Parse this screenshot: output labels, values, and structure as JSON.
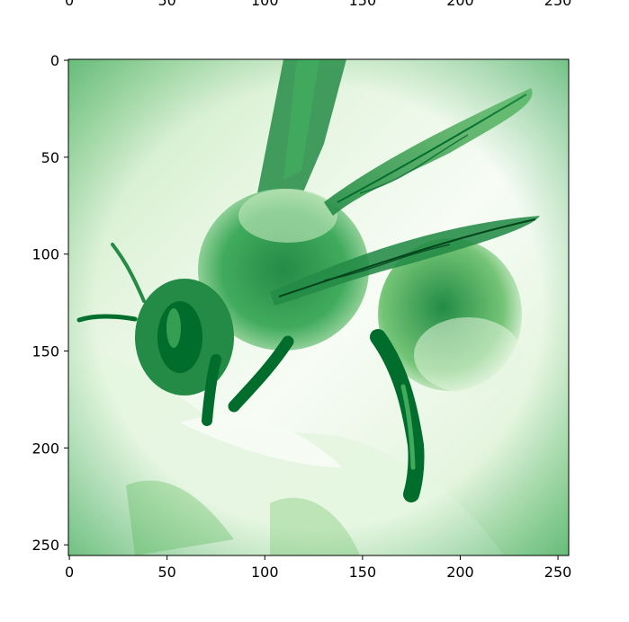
{
  "chart_data": [
    {
      "type": "image",
      "x_ticks": [
        0,
        50,
        100,
        150,
        200,
        250
      ],
      "x_tick_labels": [
        "0",
        "50",
        "100",
        "150",
        "200",
        "250"
      ],
      "clipped_top_panel": true
    },
    {
      "type": "image",
      "image_subject": "bee",
      "colormap": "Greens",
      "extent": {
        "x": [
          -0.5,
          255.5
        ],
        "y": [
          255.5,
          -0.5
        ]
      },
      "x_ticks": [
        0,
        50,
        100,
        150,
        200,
        250
      ],
      "x_tick_labels": [
        "0",
        "50",
        "100",
        "150",
        "200",
        "250"
      ],
      "y_ticks": [
        0,
        50,
        100,
        150,
        200,
        250
      ],
      "y_tick_labels": [
        "0",
        "50",
        "100",
        "150",
        "200",
        "250"
      ],
      "grid": false,
      "title": "",
      "xlabel": "",
      "ylabel": ""
    }
  ],
  "colors": {
    "light": "#f7fcf5",
    "pale": "#e5f5e0",
    "mid_light": "#c7e9c0",
    "mid": "#a1d99b",
    "medium": "#74c476",
    "strong": "#41ab5d",
    "dark": "#238b45",
    "deeper": "#006d2c",
    "darkest": "#00441b"
  }
}
